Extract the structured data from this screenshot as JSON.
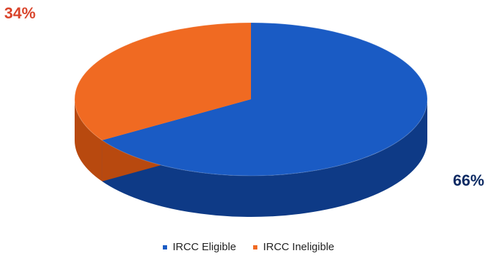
{
  "chart_data": {
    "type": "pie",
    "title": "",
    "slices": [
      {
        "name": "IRCC Eligible",
        "value": 66,
        "label": "66%",
        "color": "#1a5bc4",
        "side_color": "#0e3a86"
      },
      {
        "name": "IRCC Ineligible",
        "value": 34,
        "label": "34%",
        "color": "#f06a22",
        "side_color": "#b8490f"
      }
    ],
    "legend_position": "bottom",
    "style": "3d"
  }
}
